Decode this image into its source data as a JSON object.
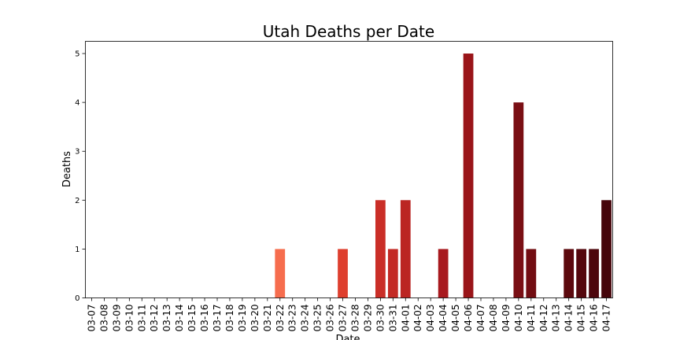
{
  "chart_data": {
    "type": "bar",
    "title": "Utah Deaths per Date",
    "xlabel": "Date",
    "ylabel": "Deaths",
    "ylim": [
      0,
      5.25
    ],
    "yticks": [
      0,
      1,
      2,
      3,
      4,
      5
    ],
    "grid": false,
    "categories": [
      "03-07",
      "03-08",
      "03-09",
      "03-10",
      "03-11",
      "03-12",
      "03-13",
      "03-14",
      "03-15",
      "03-16",
      "03-17",
      "03-18",
      "03-19",
      "03-20",
      "03-21",
      "03-22",
      "03-23",
      "03-24",
      "03-25",
      "03-26",
      "03-27",
      "03-28",
      "03-29",
      "03-30",
      "03-31",
      "04-01",
      "04-02",
      "04-03",
      "04-04",
      "04-05",
      "04-06",
      "04-07",
      "04-08",
      "04-09",
      "04-10",
      "04-11",
      "04-12",
      "04-13",
      "04-14",
      "04-15",
      "04-16",
      "04-17"
    ],
    "values": [
      0,
      0,
      0,
      0,
      0,
      0,
      0,
      0,
      0,
      0,
      0,
      0,
      0,
      0,
      0,
      1,
      0,
      0,
      0,
      0,
      1,
      0,
      0,
      2,
      1,
      2,
      0,
      0,
      1,
      0,
      5,
      0,
      0,
      0,
      4,
      1,
      0,
      0,
      1,
      1,
      1,
      2
    ],
    "colors": [
      "#fff5f0",
      "#ffefe8",
      "#fee9df",
      "#fee3d6",
      "#fddbcb",
      "#fdd1be",
      "#fcc7b2",
      "#fcbda5",
      "#fcb398",
      "#fca98c",
      "#fc9f81",
      "#fc9474",
      "#fb8a68",
      "#fb805e",
      "#f97655",
      "#f66d4e",
      "#f26448",
      "#ef5b41",
      "#ea513a",
      "#e44733",
      "#de3f2e",
      "#d8392b",
      "#d13329",
      "#ca2e27",
      "#c32a25",
      "#bb2623",
      "#b52222",
      "#ae1e20",
      "#a8191e",
      "#a2161b",
      "#9a1519",
      "#921418",
      "#8a1217",
      "#831115",
      "#7a0f14",
      "#720d12",
      "#6b0c11",
      "#630a10",
      "#5c090e",
      "#54080d",
      "#4d060c",
      "#45050b"
    ]
  }
}
